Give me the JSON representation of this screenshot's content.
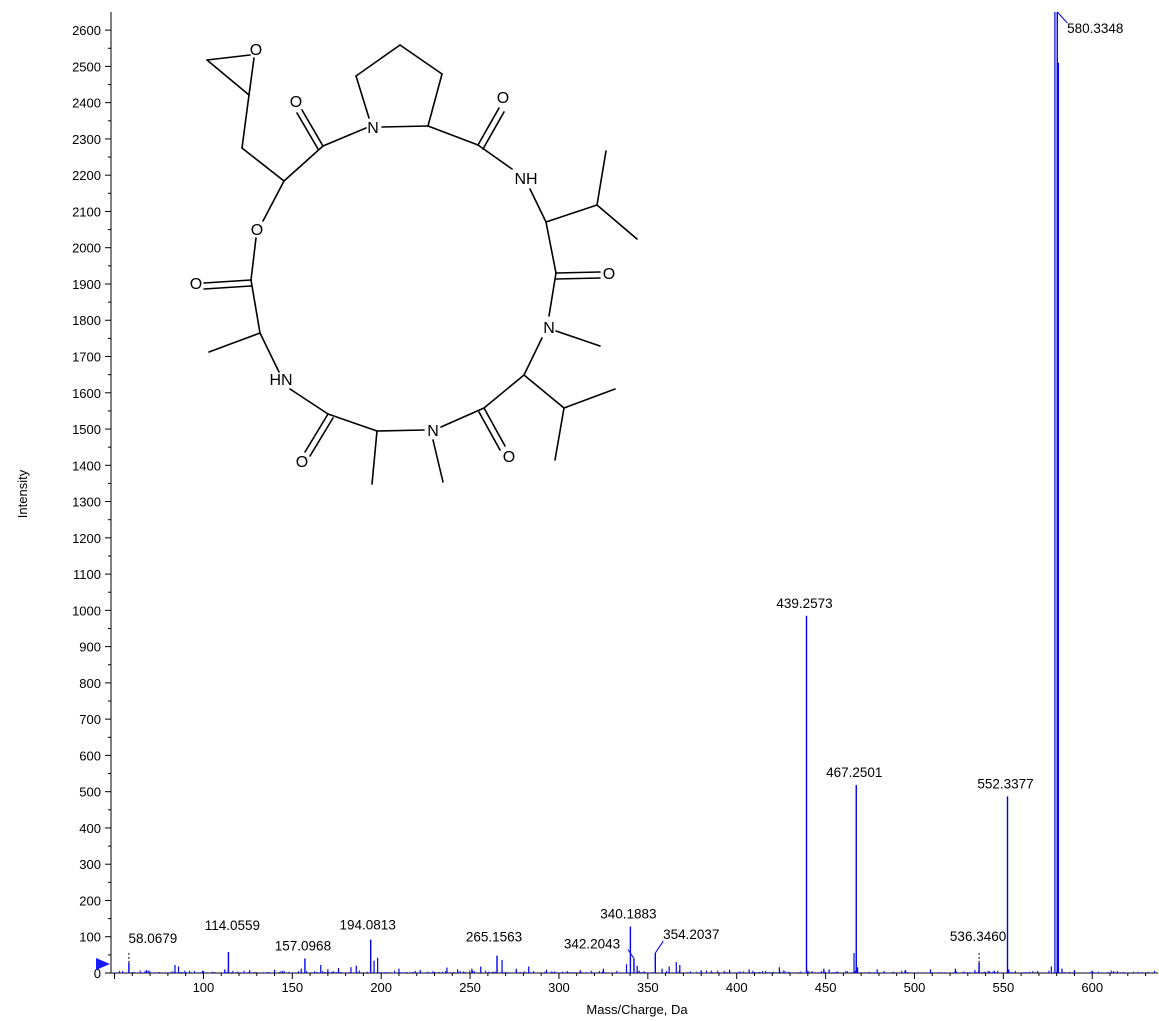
{
  "chart_data": {
    "type": "bar",
    "subtype": "mass-spectrum",
    "xlabel": "Mass/Charge, Da",
    "ylabel": "Intensity",
    "xlim": [
      48,
      637
    ],
    "ylim": [
      0,
      2650
    ],
    "x_ticks": [
      100,
      150,
      200,
      250,
      300,
      350,
      400,
      450,
      500,
      550,
      600
    ],
    "y_ticks": [
      0,
      100,
      200,
      300,
      400,
      500,
      600,
      700,
      800,
      900,
      1000,
      1100,
      1200,
      1300,
      1400,
      1500,
      1600,
      1700,
      1800,
      1900,
      2000,
      2100,
      2200,
      2300,
      2400,
      2500,
      2600
    ],
    "series_color": "#0000ee",
    "grid": false,
    "peaks": [
      {
        "mz": 58.0679,
        "intensity": 28,
        "label": "58.0679"
      },
      {
        "mz": 114.0559,
        "intensity": 58,
        "label": "114.0559"
      },
      {
        "mz": 157.0968,
        "intensity": 40,
        "label": "157.0968"
      },
      {
        "mz": 194.0813,
        "intensity": 92,
        "label": "194.0813"
      },
      {
        "mz": 265.1563,
        "intensity": 48,
        "label": "265.1563"
      },
      {
        "mz": 340.1883,
        "intensity": 128,
        "label": "340.1883"
      },
      {
        "mz": 342.2043,
        "intensity": 40,
        "label": "342.2043"
      },
      {
        "mz": 354.2037,
        "intensity": 55,
        "label": "354.2037"
      },
      {
        "mz": 439.2573,
        "intensity": 985,
        "label": "439.2573"
      },
      {
        "mz": 467.2501,
        "intensity": 518,
        "label": "467.2501"
      },
      {
        "mz": 536.346,
        "intensity": 28,
        "label": "536.3460"
      },
      {
        "mz": 552.3377,
        "intensity": 487,
        "label": "552.3377"
      },
      {
        "mz": 580.3348,
        "intensity": 2650,
        "label": "580.3348"
      }
    ],
    "minor_peaks": [
      {
        "mz": 68,
        "intensity": 8
      },
      {
        "mz": 84,
        "intensity": 22
      },
      {
        "mz": 86,
        "intensity": 18
      },
      {
        "mz": 100,
        "intensity": 6
      },
      {
        "mz": 112,
        "intensity": 10
      },
      {
        "mz": 126,
        "intensity": 8
      },
      {
        "mz": 140,
        "intensity": 9
      },
      {
        "mz": 155,
        "intensity": 12
      },
      {
        "mz": 166,
        "intensity": 22
      },
      {
        "mz": 170,
        "intensity": 10
      },
      {
        "mz": 176,
        "intensity": 14
      },
      {
        "mz": 183,
        "intensity": 16
      },
      {
        "mz": 186,
        "intensity": 20
      },
      {
        "mz": 196,
        "intensity": 34
      },
      {
        "mz": 198,
        "intensity": 42
      },
      {
        "mz": 210,
        "intensity": 12
      },
      {
        "mz": 222,
        "intensity": 8
      },
      {
        "mz": 237,
        "intensity": 15
      },
      {
        "mz": 243,
        "intensity": 10
      },
      {
        "mz": 251,
        "intensity": 12
      },
      {
        "mz": 256,
        "intensity": 18
      },
      {
        "mz": 268,
        "intensity": 36
      },
      {
        "mz": 276,
        "intensity": 12
      },
      {
        "mz": 283,
        "intensity": 18
      },
      {
        "mz": 293,
        "intensity": 9
      },
      {
        "mz": 312,
        "intensity": 8
      },
      {
        "mz": 325,
        "intensity": 12
      },
      {
        "mz": 338,
        "intensity": 24
      },
      {
        "mz": 344,
        "intensity": 20
      },
      {
        "mz": 358,
        "intensity": 12
      },
      {
        "mz": 362,
        "intensity": 18
      },
      {
        "mz": 366,
        "intensity": 30
      },
      {
        "mz": 368,
        "intensity": 22
      },
      {
        "mz": 380,
        "intensity": 8
      },
      {
        "mz": 396,
        "intensity": 9
      },
      {
        "mz": 407,
        "intensity": 10
      },
      {
        "mz": 424,
        "intensity": 16
      },
      {
        "mz": 449,
        "intensity": 12
      },
      {
        "mz": 452,
        "intensity": 10
      },
      {
        "mz": 466,
        "intensity": 55
      },
      {
        "mz": 468,
        "intensity": 16
      },
      {
        "mz": 479,
        "intensity": 10
      },
      {
        "mz": 495,
        "intensity": 8
      },
      {
        "mz": 509,
        "intensity": 10
      },
      {
        "mz": 523,
        "intensity": 12
      },
      {
        "mz": 534,
        "intensity": 8
      },
      {
        "mz": 553,
        "intensity": 10
      },
      {
        "mz": 577,
        "intensity": 18
      },
      {
        "mz": 579,
        "intensity": 2650
      },
      {
        "mz": 581,
        "intensity": 2510
      },
      {
        "mz": 583,
        "intensity": 12
      },
      {
        "mz": 590,
        "intensity": 8
      },
      {
        "mz": 600,
        "intensity": 6
      },
      {
        "mz": 612,
        "intensity": 5
      }
    ]
  },
  "structure_inset": {
    "atom_labels": [
      "O",
      "O",
      "N",
      "O",
      "NH",
      "O",
      "O",
      "N",
      "HN",
      "N",
      "O",
      "O"
    ]
  },
  "zero_marker_icon": "arrow-right-icon"
}
